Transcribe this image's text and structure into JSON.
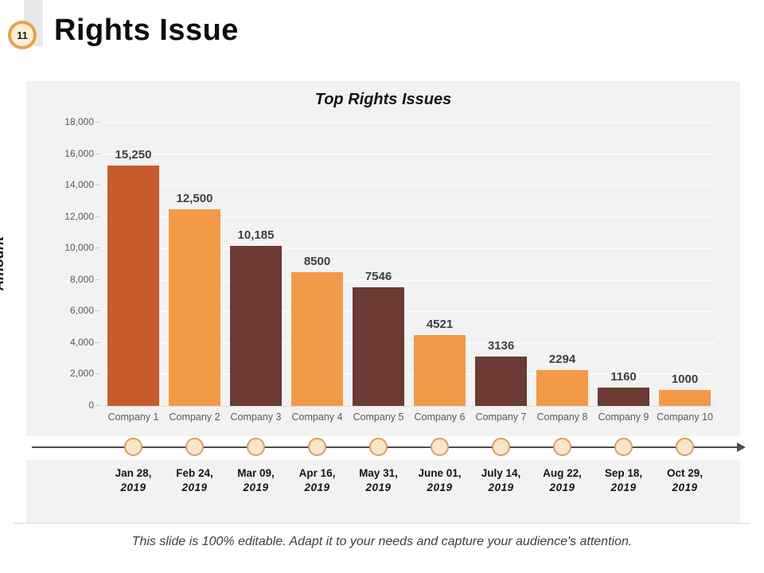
{
  "slide": {
    "badge_number": "11",
    "title": "Rights Issue",
    "footer": "This slide is 100% editable. Adapt it to your needs and capture your audience's attention."
  },
  "chart_data": {
    "type": "bar",
    "title": "Top Rights Issues",
    "xlabel": "",
    "ylabel": "Amount",
    "categories": [
      "Company 1",
      "Company 2",
      "Company 3",
      "Company 4",
      "Company 5",
      "Company 6",
      "Company 7",
      "Company 8",
      "Company 9",
      "Company 10"
    ],
    "values": [
      15250,
      12500,
      10185,
      8500,
      7546,
      4521,
      3136,
      2294,
      1160,
      1000
    ],
    "value_labels": [
      "15,250",
      "12,500",
      "10,185",
      "8500",
      "7546",
      "4521",
      "3136",
      "2294",
      "1160",
      "1000"
    ],
    "ylim": [
      0,
      18000
    ],
    "yticks": [
      {
        "value": 0,
        "label": "0"
      },
      {
        "value": 2000,
        "label": "2,000"
      },
      {
        "value": 4000,
        "label": "4,000"
      },
      {
        "value": 6000,
        "label": "6,000"
      },
      {
        "value": 8000,
        "label": "8,000"
      },
      {
        "value": 10000,
        "label": "10,000"
      },
      {
        "value": 12000,
        "label": "12,000"
      },
      {
        "value": 14000,
        "label": "14,000"
      },
      {
        "value": 16000,
        "label": "16,000"
      },
      {
        "value": 18000,
        "label": "18,000"
      }
    ],
    "grid": true,
    "legend_position": "none",
    "bar_colors": [
      "#C85B2E",
      "#F29A47",
      "#6B3A33",
      "#F29A47",
      "#6B3A33",
      "#F29A47",
      "#6B3A33",
      "#F29A47",
      "#6B3A33",
      "#F29A47"
    ]
  },
  "timeline": {
    "items": [
      {
        "date": "Jan 28,",
        "year": "2019"
      },
      {
        "date": "Feb 24,",
        "year": "2019"
      },
      {
        "date": "Mar 09,",
        "year": "2019"
      },
      {
        "date": "Apr 16,",
        "year": "2019"
      },
      {
        "date": "May 31,",
        "year": "2019"
      },
      {
        "date": "June 01,",
        "year": "2019"
      },
      {
        "date": "July 14,",
        "year": "2019"
      },
      {
        "date": "Aug 22,",
        "year": "2019"
      },
      {
        "date": "Sep 18,",
        "year": "2019"
      },
      {
        "date": "Oct 29,",
        "year": "2019"
      }
    ]
  },
  "colors": {
    "accent_orange": "#E9A050",
    "bar_rust": "#C85B2E",
    "bar_orange": "#F29A47",
    "bar_brown": "#6B3A33",
    "panel_gray": "#F2F2F2",
    "dot_fill": "#FAE5C6",
    "dot_border": "#D79E66",
    "axis_text": "#595959",
    "value_text": "#3F3F3F"
  }
}
